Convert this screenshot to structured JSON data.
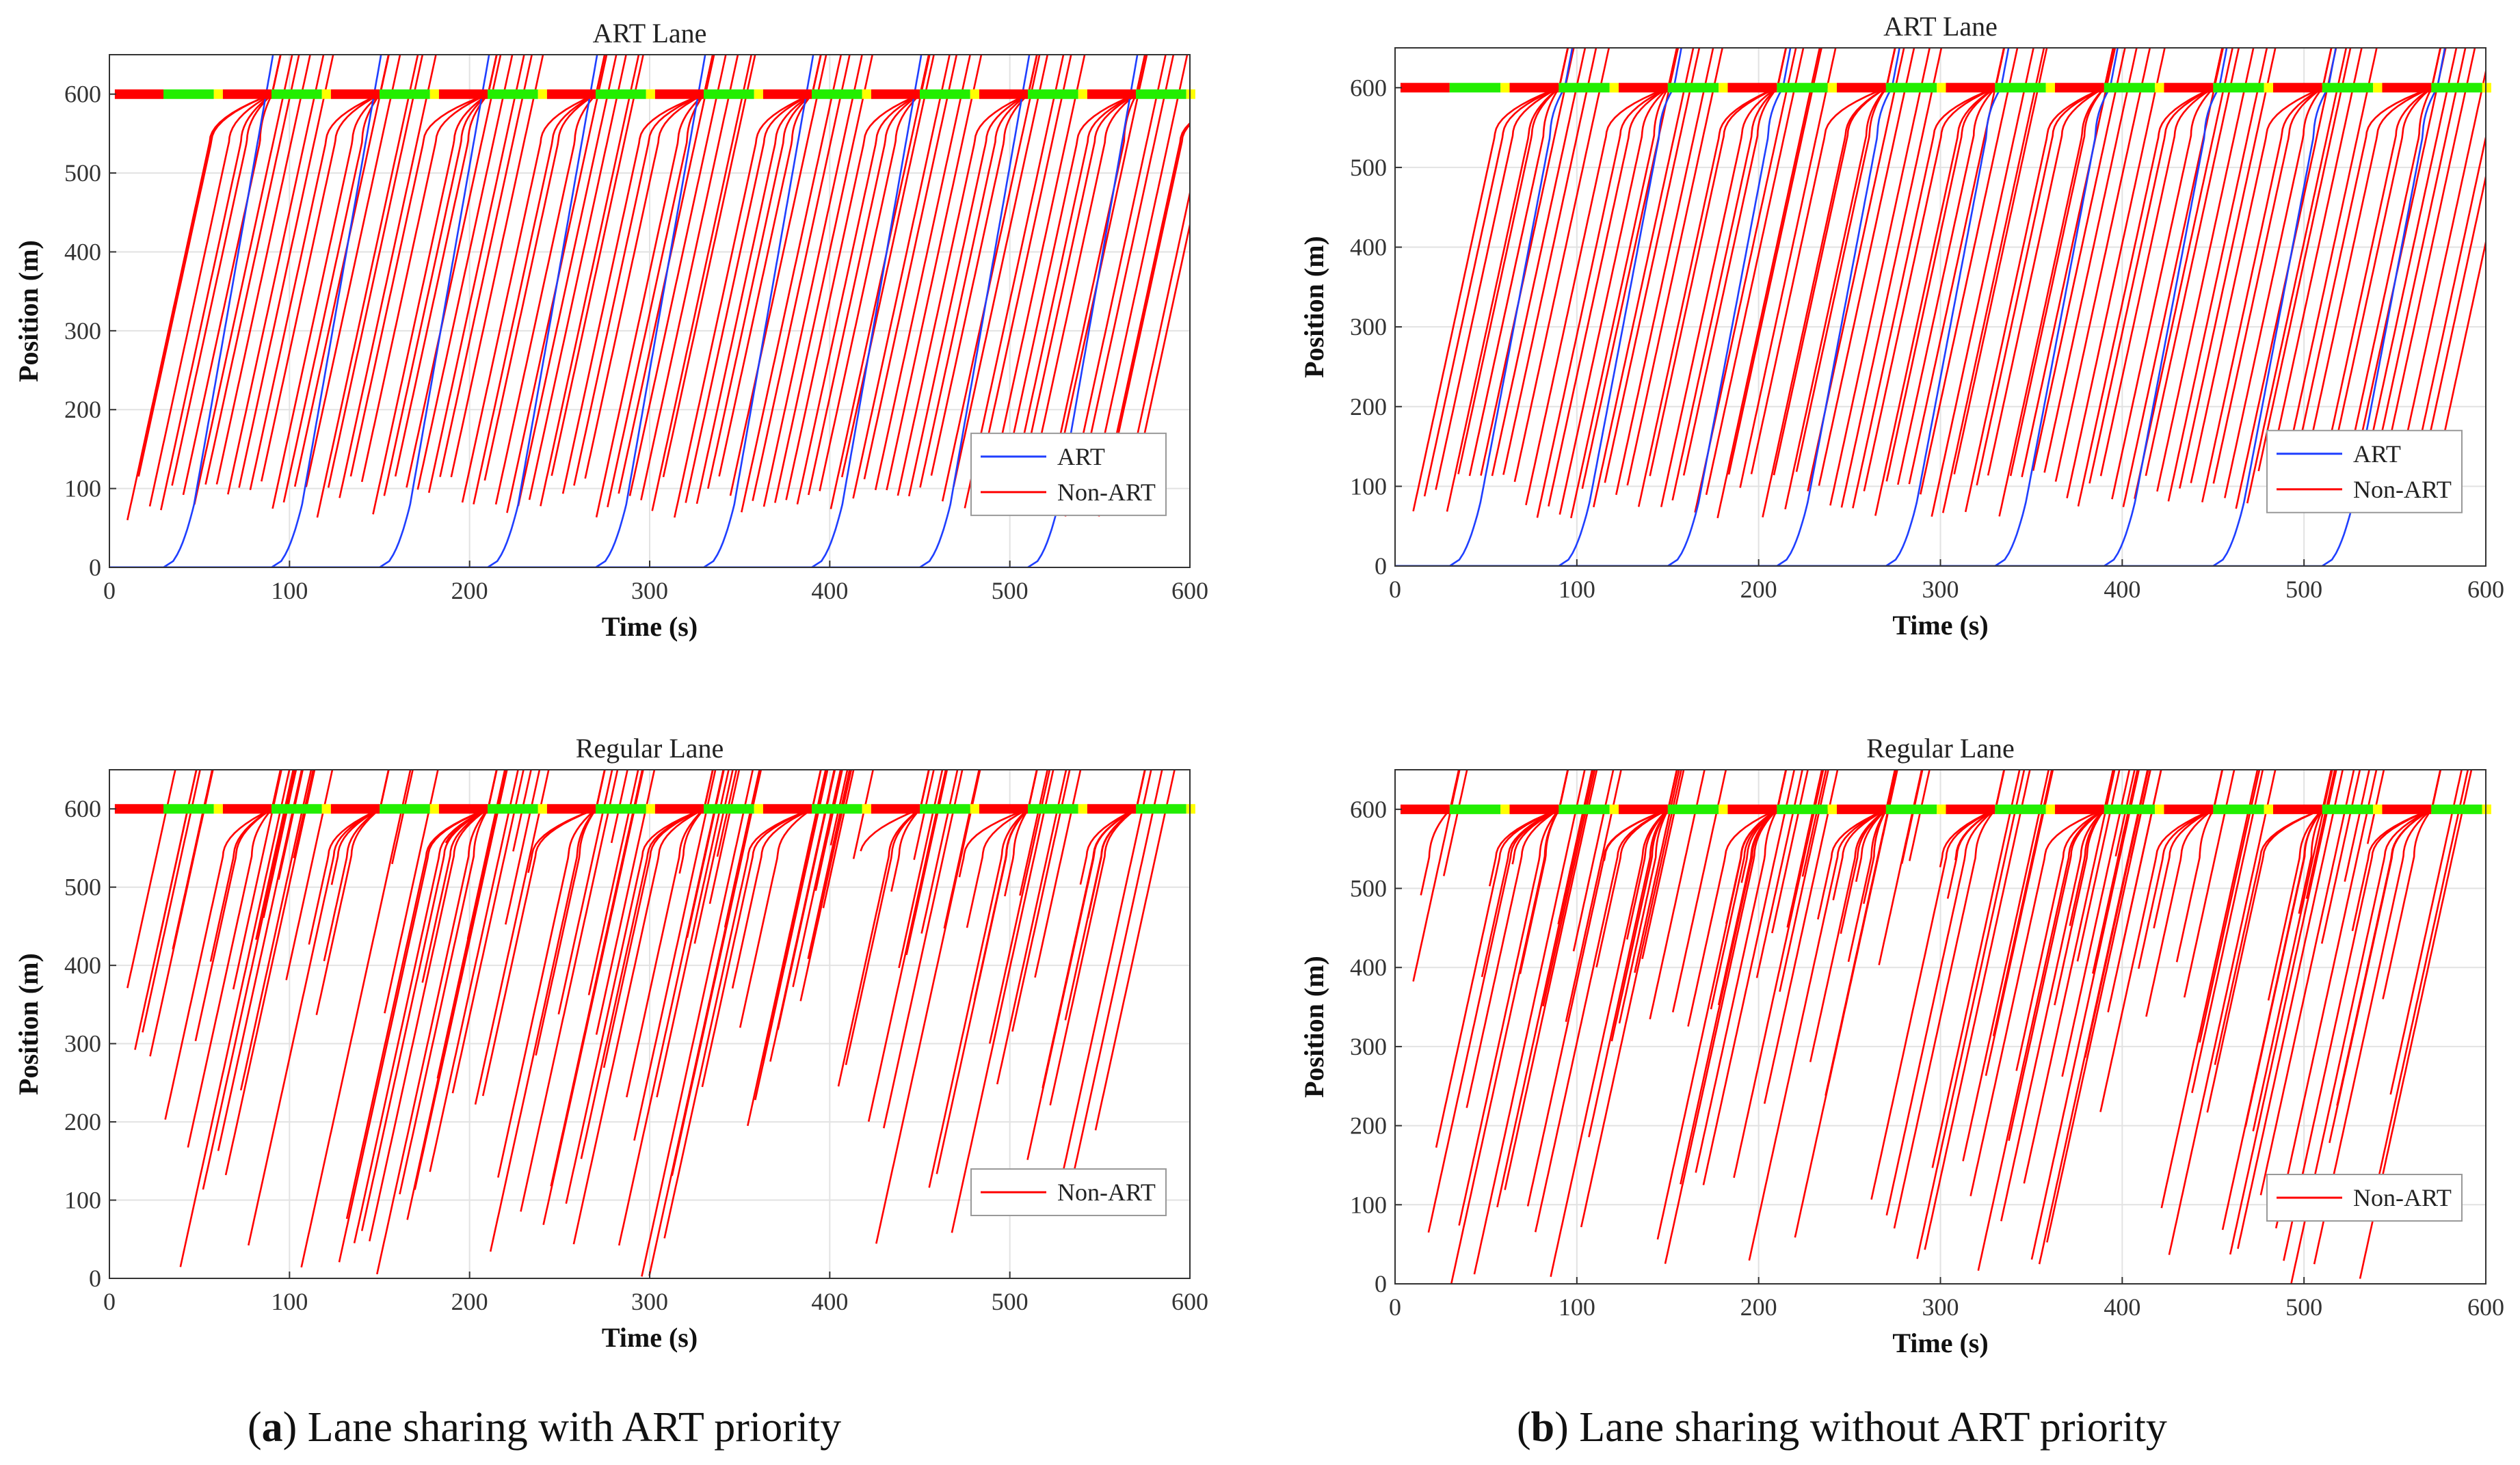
{
  "figure": {
    "captions": [
      {
        "letter": "a",
        "rest": ") Lane sharing with ART priority"
      },
      {
        "letter": "b",
        "rest": ") Lane sharing without ART priority"
      }
    ]
  },
  "chart_data": [
    {
      "type": "line",
      "panel": "a-top",
      "title": "ART Lane",
      "xlabel": "Time (s)",
      "ylabel": "Position (m)",
      "xlim": [
        0,
        600
      ],
      "ylim": [
        0,
        650
      ],
      "xticks": [
        "0",
        "100",
        "200",
        "300",
        "400",
        "500",
        "600"
      ],
      "yticks": [
        "0",
        "100",
        "200",
        "300",
        "400",
        "500",
        "600"
      ],
      "grid": true,
      "legend": {
        "position": "lower-right",
        "entries": [
          "ART",
          "Non-ART"
        ]
      },
      "signal": {
        "position": 600,
        "cycle": 60,
        "red_then_green": [
          30,
          30
        ]
      },
      "series": [
        {
          "name": "ART",
          "color": "#1f3fff",
          "departures": [
            30,
            90,
            150,
            210,
            270,
            330,
            390,
            450,
            510
          ]
        },
        {
          "name": "Non-ART",
          "color": "#ff0000",
          "entry_position_range": [
            60,
            120
          ]
        }
      ]
    },
    {
      "type": "line",
      "panel": "b-top",
      "title": "ART Lane",
      "xlabel": "Time (s)",
      "ylabel": "Position (m)",
      "xlim": [
        0,
        600
      ],
      "ylim": [
        0,
        650
      ],
      "xticks": [
        "0",
        "100",
        "200",
        "300",
        "400",
        "500",
        "600"
      ],
      "yticks": [
        "0",
        "100",
        "200",
        "300",
        "400",
        "500",
        "600"
      ],
      "grid": true,
      "legend": {
        "position": "lower-right",
        "entries": [
          "ART",
          "Non-ART"
        ]
      },
      "signal": {
        "position": 600,
        "cycle": 60,
        "red_then_green": [
          30,
          30
        ]
      },
      "series": [
        {
          "name": "ART",
          "color": "#1f3fff",
          "departures": [
            30,
            90,
            150,
            210,
            270,
            330,
            390,
            450,
            510
          ]
        },
        {
          "name": "Non-ART",
          "color": "#ff0000",
          "entry_position_range": [
            60,
            120
          ]
        }
      ]
    },
    {
      "type": "line",
      "panel": "a-bottom",
      "title": "Regular Lane",
      "xlabel": "Time (s)",
      "ylabel": "Position (m)",
      "xlim": [
        0,
        600
      ],
      "ylim": [
        0,
        650
      ],
      "xticks": [
        "0",
        "100",
        "200",
        "300",
        "400",
        "500",
        "600"
      ],
      "yticks": [
        "0",
        "100",
        "200",
        "300",
        "400",
        "500",
        "600"
      ],
      "grid": true,
      "legend": {
        "position": "lower-right",
        "entries": [
          "Non-ART"
        ]
      },
      "signal": {
        "position": 600,
        "cycle": 60,
        "red_then_green": [
          30,
          30
        ]
      },
      "series": [
        {
          "name": "Non-ART",
          "color": "#ff0000",
          "entry_position_range": [
            0,
            560
          ]
        }
      ]
    },
    {
      "type": "line",
      "panel": "b-bottom",
      "title": "Regular Lane",
      "xlabel": "Time (s)",
      "ylabel": "Position (m)",
      "xlim": [
        0,
        600
      ],
      "ylim": [
        0,
        650
      ],
      "xticks": [
        "0",
        "100",
        "200",
        "300",
        "400",
        "500",
        "600"
      ],
      "yticks": [
        "0",
        "100",
        "200",
        "300",
        "400",
        "500",
        "600"
      ],
      "grid": true,
      "legend": {
        "position": "lower-right",
        "entries": [
          "Non-ART"
        ]
      },
      "signal": {
        "position": 600,
        "cycle": 60,
        "red_then_green": [
          30,
          30
        ]
      },
      "series": [
        {
          "name": "Non-ART",
          "color": "#ff0000",
          "entry_position_range": [
            0,
            560
          ]
        }
      ]
    }
  ]
}
